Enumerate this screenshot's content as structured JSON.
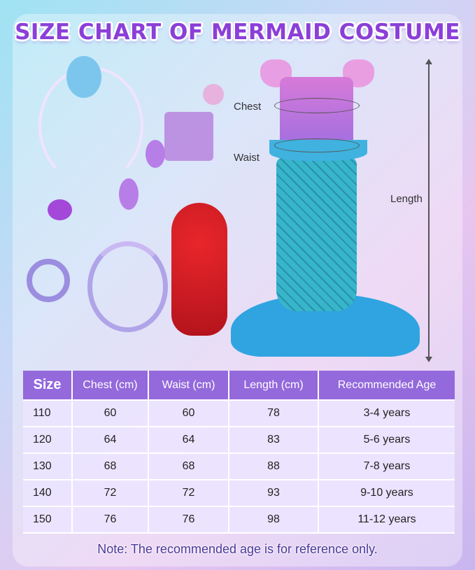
{
  "title": "SIZE CHART OF MERMAID COSTUME",
  "labels": {
    "chest": "Chest",
    "waist": "Waist",
    "length": "Length"
  },
  "table": {
    "headers": [
      "Size",
      "Chest (cm)",
      "Waist (cm)",
      "Length (cm)",
      "Recommended Age"
    ],
    "rows": [
      [
        "110",
        "60",
        "60",
        "78",
        "3-4 years"
      ],
      [
        "120",
        "64",
        "64",
        "83",
        "5-6 years"
      ],
      [
        "130",
        "68",
        "68",
        "88",
        "7-8 years"
      ],
      [
        "140",
        "72",
        "72",
        "93",
        "9-10 years"
      ],
      [
        "150",
        "76",
        "76",
        "98",
        "11-12 years"
      ]
    ]
  },
  "note": "Note: The recommended age is for reference only.",
  "colors": {
    "title": "#8b3fd8",
    "header": "#9469dc",
    "row": "#ece4ff",
    "note": "#4b3a9a"
  }
}
